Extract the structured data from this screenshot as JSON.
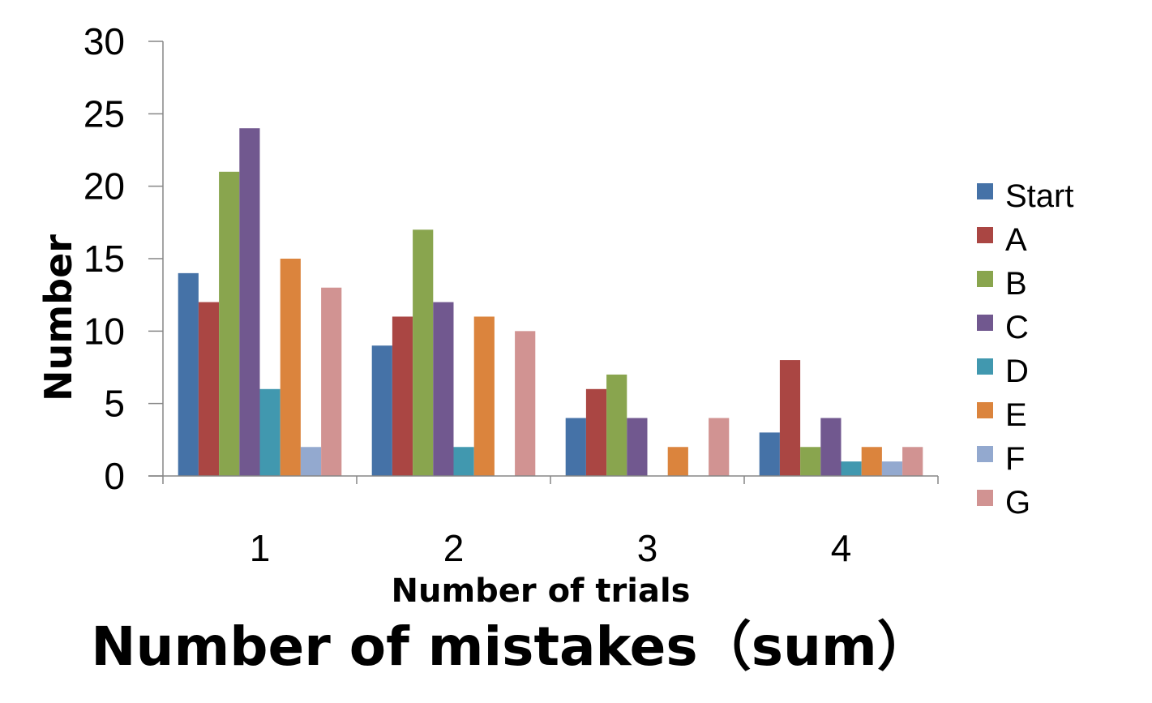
{
  "chart_data": {
    "type": "bar",
    "caption": "Number of mistakes（sum）",
    "xlabel": "Number of trials",
    "ylabel": "Number",
    "categories": [
      "1",
      "2",
      "3",
      "4"
    ],
    "ylim": [
      0,
      30
    ],
    "yticks": [
      0,
      5,
      10,
      15,
      20,
      25,
      30
    ],
    "grid": false,
    "legend_position": "right",
    "series": [
      {
        "name": "Start",
        "color": "#4572A7",
        "values": [
          14,
          9,
          4,
          3
        ]
      },
      {
        "name": "A",
        "color": "#AA4643",
        "values": [
          12,
          11,
          6,
          8
        ]
      },
      {
        "name": "B",
        "color": "#89A54E",
        "values": [
          21,
          17,
          7,
          2
        ]
      },
      {
        "name": "C",
        "color": "#71588F",
        "values": [
          24,
          12,
          4,
          4
        ]
      },
      {
        "name": "D",
        "color": "#4198AF",
        "values": [
          6,
          2,
          0,
          1
        ]
      },
      {
        "name": "E",
        "color": "#DB843D",
        "values": [
          15,
          11,
          2,
          2
        ]
      },
      {
        "name": "F",
        "color": "#93A9CF",
        "values": [
          2,
          0,
          0,
          1
        ]
      },
      {
        "name": "G",
        "color": "#D19392",
        "values": [
          13,
          10,
          4,
          2
        ]
      }
    ]
  }
}
